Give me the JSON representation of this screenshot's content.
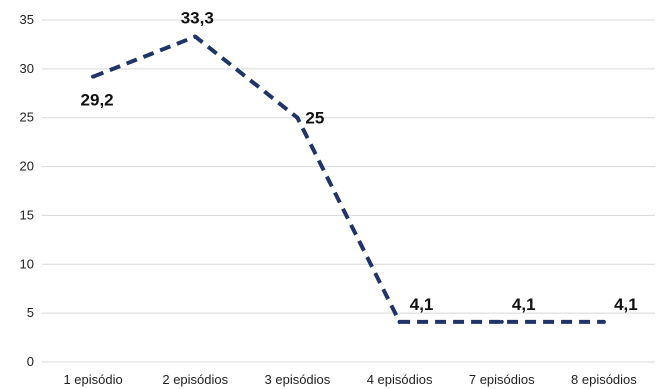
{
  "chart_data": {
    "type": "line",
    "categories": [
      "1 episódio",
      "2 episódios",
      "3 episódios",
      "4 episódios",
      "7 episódios",
      "8 episódios"
    ],
    "series": [
      {
        "values": [
          29.2,
          33.3,
          25,
          4.1,
          4.1,
          4.1
        ],
        "data_labels": [
          "29,2",
          "33,3",
          "25",
          "4,1",
          "4,1",
          "4,1"
        ]
      }
    ],
    "yticks": [
      "0",
      "5",
      "10",
      "15",
      "20",
      "25",
      "30",
      "35"
    ],
    "ylim": [
      0,
      35
    ],
    "grid": true,
    "legend": "none",
    "line_color": "#1f3469",
    "line_style": "dashed"
  }
}
